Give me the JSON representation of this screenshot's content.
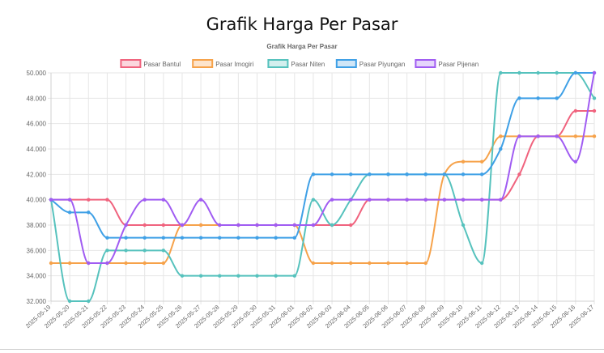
{
  "page": {
    "title": "Grafik Harga Per Pasar"
  },
  "chart_data": {
    "type": "line",
    "title": "Grafik Harga Per Pasar",
    "xlabel": "",
    "ylabel": "",
    "ylim": [
      32000,
      50000
    ],
    "y_ticks": [
      "32.000",
      "34.000",
      "36.000",
      "38.000",
      "40.000",
      "42.000",
      "44.000",
      "46.000",
      "48.000",
      "50.000"
    ],
    "legend_position": "top",
    "grid": true,
    "x": [
      "2025-05-19",
      "2025-05-20",
      "2025-05-21",
      "2025-05-22",
      "2025-05-23",
      "2025-05-24",
      "2025-05-25",
      "2025-05-26",
      "2025-05-27",
      "2025-05-28",
      "2025-05-29",
      "2025-05-30",
      "2025-05-31",
      "2025-06-01",
      "2025-06-02",
      "2025-06-03",
      "2025-06-04",
      "2025-06-05",
      "2025-06-06",
      "2025-06-07",
      "2025-06-08",
      "2025-06-09",
      "2025-06-10",
      "2025-06-11",
      "2025-06-12",
      "2025-06-13",
      "2025-06-14",
      "2025-06-15",
      "2025-06-16",
      "2025-06-17"
    ],
    "series": [
      {
        "name": "Pasar Bantul",
        "color": "#f0637e",
        "fill": "#fbd6dd",
        "values": [
          40000,
          40000,
          40000,
          40000,
          38000,
          38000,
          38000,
          38000,
          38000,
          38000,
          38000,
          38000,
          38000,
          38000,
          38000,
          38000,
          38000,
          40000,
          40000,
          40000,
          40000,
          40000,
          40000,
          40000,
          40000,
          42000,
          45000,
          45000,
          47000,
          47000
        ]
      },
      {
        "name": "Pasar Imogiri",
        "color": "#f6a24a",
        "fill": "#fde4cc",
        "values": [
          35000,
          35000,
          35000,
          35000,
          35000,
          35000,
          35000,
          38000,
          38000,
          38000,
          38000,
          38000,
          38000,
          38000,
          35000,
          35000,
          35000,
          35000,
          35000,
          35000,
          35000,
          42000,
          43000,
          43000,
          45000,
          45000,
          45000,
          45000,
          45000,
          45000
        ]
      },
      {
        "name": "Pasar Niten",
        "color": "#56c2bd",
        "fill": "#d3efee",
        "values": [
          40000,
          32000,
          32000,
          36000,
          36000,
          36000,
          36000,
          34000,
          34000,
          34000,
          34000,
          34000,
          34000,
          34000,
          40000,
          38000,
          40000,
          42000,
          42000,
          42000,
          42000,
          42000,
          38000,
          35000,
          50000,
          50000,
          50000,
          50000,
          50000,
          48000
        ]
      },
      {
        "name": "Pasar Piyungan",
        "color": "#3fa0e6",
        "fill": "#d0e6f7",
        "values": [
          40000,
          39000,
          39000,
          37000,
          37000,
          37000,
          37000,
          37000,
          37000,
          37000,
          37000,
          37000,
          37000,
          37000,
          42000,
          42000,
          42000,
          42000,
          42000,
          42000,
          42000,
          42000,
          42000,
          42000,
          44000,
          48000,
          48000,
          48000,
          50000,
          50000
        ]
      },
      {
        "name": "Pasar Pijenan",
        "color": "#a05cf2",
        "fill": "#e5d6fb",
        "values": [
          40000,
          40000,
          35000,
          35000,
          38000,
          40000,
          40000,
          38000,
          40000,
          38000,
          38000,
          38000,
          38000,
          38000,
          38000,
          40000,
          40000,
          40000,
          40000,
          40000,
          40000,
          40000,
          40000,
          40000,
          40000,
          45000,
          45000,
          45000,
          43000,
          50000
        ]
      }
    ]
  }
}
